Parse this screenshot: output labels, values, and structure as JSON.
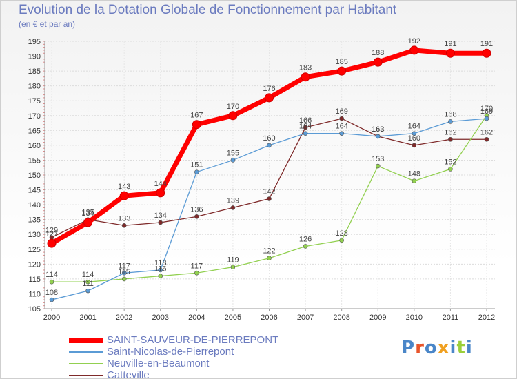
{
  "chart_data": {
    "type": "line",
    "title": "Evolution de la Dotation Globale de Fonctionnement par Habitant",
    "subtitle": "(en € et par an)",
    "xlabel": "",
    "ylabel": "",
    "categories": [
      "2000",
      "2001",
      "2002",
      "2003",
      "2004",
      "2005",
      "2006",
      "2007",
      "2008",
      "2009",
      "2010",
      "2011",
      "2012"
    ],
    "ylim": [
      105,
      195
    ],
    "yticks": [
      105,
      110,
      115,
      120,
      125,
      130,
      135,
      140,
      145,
      150,
      155,
      160,
      165,
      170,
      175,
      180,
      185,
      190,
      195
    ],
    "grid": "horizontal",
    "series": [
      {
        "name": "SAINT-SAUVEUR-DE-PIERREPONT",
        "color": "#ff0000",
        "values": [
          127,
          134,
          143,
          144,
          167,
          170,
          176,
          183,
          185,
          188,
          192,
          191,
          191
        ]
      },
      {
        "name": "Saint-Nicolas-de-Pierrepont",
        "color": "#5b9bd5",
        "values": [
          108,
          111,
          117,
          118,
          151,
          155,
          160,
          164,
          164,
          163,
          164,
          168,
          169
        ]
      },
      {
        "name": "Neuville-en-Beaumont",
        "color": "#92d050",
        "values": [
          114,
          114,
          115,
          116,
          117,
          119,
          122,
          126,
          128,
          153,
          148,
          152,
          170
        ]
      },
      {
        "name": "Catteville",
        "color": "#7f2a2a",
        "values": [
          129,
          135,
          133,
          134,
          136,
          139,
          142,
          166,
          169,
          163,
          160,
          162,
          162
        ]
      }
    ]
  },
  "logo": {
    "text": "Proxiti"
  }
}
